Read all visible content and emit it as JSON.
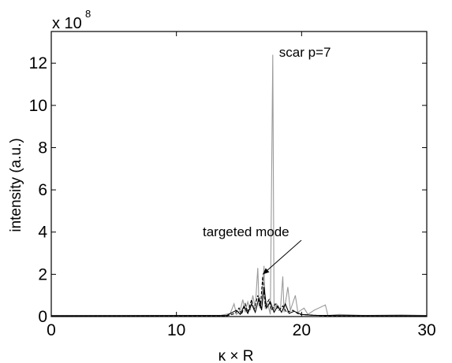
{
  "chart_data": {
    "type": "line",
    "xlabel": "κ × R",
    "ylabel": "intensity (a.u.)",
    "y_multiplier": {
      "base": "x 10",
      "exponent": "8"
    },
    "xlim": [
      0,
      30
    ],
    "ylim": [
      0,
      13.5
    ],
    "x_ticks": [
      0,
      10,
      20,
      30
    ],
    "y_ticks": [
      0,
      2,
      4,
      6,
      8,
      10,
      12
    ],
    "grid": false,
    "series": [
      {
        "style": "solid-gray",
        "color": "#9a9a9a",
        "points": [
          [
            0,
            0.05
          ],
          [
            5,
            0.04
          ],
          [
            10,
            0.05
          ],
          [
            13.5,
            0.05
          ],
          [
            14.3,
            0.15
          ],
          [
            14.6,
            0.6
          ],
          [
            14.8,
            0.1
          ],
          [
            15.1,
            0.3
          ],
          [
            15.3,
            0.8
          ],
          [
            15.5,
            0.2
          ],
          [
            15.7,
            0.7
          ],
          [
            15.9,
            0.3
          ],
          [
            16.1,
            1.0
          ],
          [
            16.3,
            0.4
          ],
          [
            16.5,
            2.3
          ],
          [
            16.6,
            0.5
          ],
          [
            16.8,
            0.6
          ],
          [
            17.0,
            2.4
          ],
          [
            17.1,
            0.4
          ],
          [
            17.3,
            0.6
          ],
          [
            17.5,
            0.1
          ],
          [
            17.7,
            12.4
          ],
          [
            17.8,
            0.3
          ],
          [
            18.0,
            0.6
          ],
          [
            18.3,
            0.3
          ],
          [
            18.5,
            1.9
          ],
          [
            18.6,
            0.2
          ],
          [
            18.9,
            1.4
          ],
          [
            19.1,
            0.3
          ],
          [
            19.5,
            1.0
          ],
          [
            19.7,
            0.2
          ],
          [
            20.2,
            0.4
          ],
          [
            20.5,
            0.1
          ],
          [
            21.0,
            0.3
          ],
          [
            21.9,
            0.55
          ],
          [
            22.1,
            0.05
          ],
          [
            23,
            0.1
          ],
          [
            25,
            0.05
          ],
          [
            28,
            0.08
          ],
          [
            30,
            0.05
          ]
        ]
      },
      {
        "style": "dashed-black",
        "color": "#000000",
        "points": [
          [
            0,
            0.02
          ],
          [
            14,
            0.03
          ],
          [
            14.7,
            0.15
          ],
          [
            15.0,
            0.4
          ],
          [
            15.2,
            0.1
          ],
          [
            15.5,
            0.6
          ],
          [
            15.7,
            0.2
          ],
          [
            16.0,
            0.8
          ],
          [
            16.2,
            0.3
          ],
          [
            16.5,
            1.0
          ],
          [
            16.7,
            0.4
          ],
          [
            16.9,
            1.9
          ],
          [
            17.1,
            0.5
          ],
          [
            17.4,
            0.8
          ],
          [
            17.6,
            0.3
          ],
          [
            17.9,
            0.6
          ],
          [
            18.2,
            0.3
          ],
          [
            18.5,
            0.5
          ],
          [
            18.8,
            0.2
          ],
          [
            19.3,
            0.3
          ],
          [
            19.8,
            0.1
          ],
          [
            20.5,
            0.08
          ],
          [
            22,
            0.03
          ],
          [
            30,
            0.02
          ]
        ]
      },
      {
        "style": "solid-black",
        "color": "#000000",
        "points": [
          [
            0,
            0.04
          ],
          [
            14,
            0.05
          ],
          [
            14.8,
            0.3
          ],
          [
            15.1,
            0.1
          ],
          [
            15.4,
            0.5
          ],
          [
            15.7,
            0.15
          ],
          [
            16.0,
            0.6
          ],
          [
            16.3,
            0.2
          ],
          [
            16.6,
            0.9
          ],
          [
            16.8,
            0.3
          ],
          [
            17.0,
            1.4
          ],
          [
            17.2,
            0.4
          ],
          [
            17.5,
            0.7
          ],
          [
            17.8,
            0.2
          ],
          [
            18.1,
            0.5
          ],
          [
            18.4,
            0.2
          ],
          [
            18.7,
            0.6
          ],
          [
            19.0,
            0.15
          ],
          [
            19.4,
            0.25
          ],
          [
            20.0,
            0.1
          ],
          [
            21,
            0.06
          ],
          [
            23,
            0.05
          ],
          [
            30,
            0.04
          ]
        ]
      }
    ],
    "annotations": [
      {
        "id": "scar",
        "text": "scar p=7",
        "x": 18.2,
        "y": 12.3
      },
      {
        "id": "targeted",
        "text": "targeted mode",
        "x": 12.1,
        "y": 3.8,
        "arrow_to": [
          16.9,
          2.0
        ]
      }
    ]
  }
}
